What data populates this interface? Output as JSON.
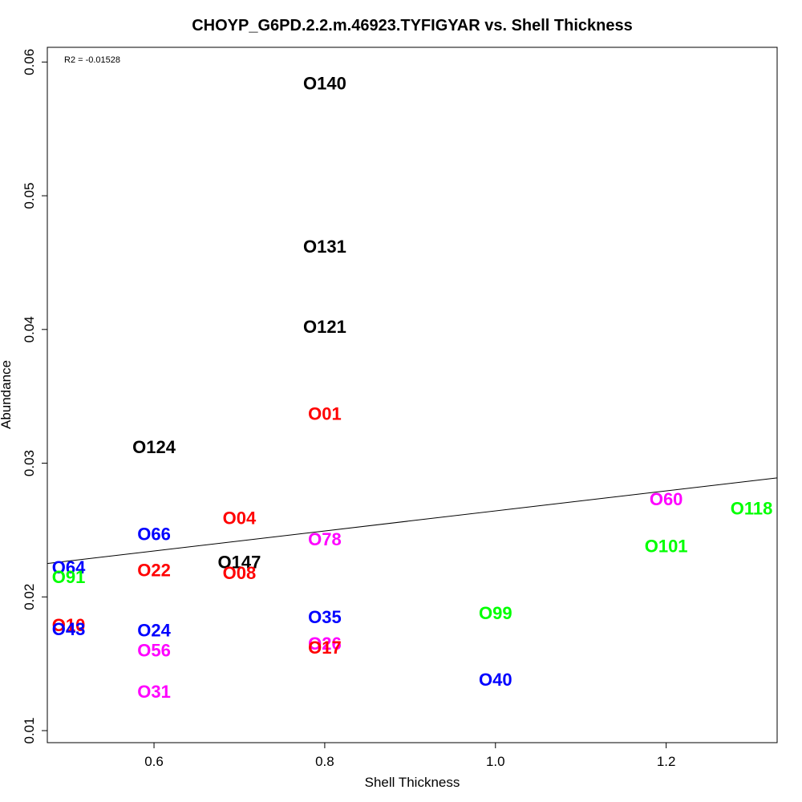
{
  "chart_data": {
    "type": "scatter",
    "title": "CHOYP_G6PD.2.2.m.46923.TYFIGYAR vs. Shell Thickness",
    "xlabel": "Shell Thickness",
    "ylabel": "Abundance",
    "annotation": "R2 = -0.01528",
    "xlim": [
      0.475,
      1.33
    ],
    "ylim": [
      0.0091,
      0.0611
    ],
    "x_ticks": [
      0.6,
      0.8,
      1.0,
      1.2
    ],
    "x_tick_labels": [
      "0.6",
      "0.8",
      "1.0",
      "1.2"
    ],
    "y_ticks": [
      0.01,
      0.02,
      0.03,
      0.04,
      0.05,
      0.06
    ],
    "y_tick_labels": [
      "0.01",
      "0.02",
      "0.03",
      "0.04",
      "0.05",
      "0.06"
    ],
    "grid": false,
    "colors": {
      "black": "#000000",
      "red": "#ff0000",
      "blue": "#0000ff",
      "magenta": "#ff00ff",
      "green": "#00ff00"
    },
    "regression_line": {
      "x": [
        0.475,
        1.33
      ],
      "y": [
        0.0225,
        0.0289
      ]
    },
    "points": [
      {
        "label": "O140",
        "x": 0.8,
        "y": 0.0584,
        "color": "#000000"
      },
      {
        "label": "O131",
        "x": 0.8,
        "y": 0.0462,
        "color": "#000000"
      },
      {
        "label": "O121",
        "x": 0.8,
        "y": 0.0402,
        "color": "#000000"
      },
      {
        "label": "O01",
        "x": 0.8,
        "y": 0.0337,
        "color": "#ff0000"
      },
      {
        "label": "O124",
        "x": 0.6,
        "y": 0.0312,
        "color": "#000000"
      },
      {
        "label": "O60",
        "x": 1.2,
        "y": 0.0273,
        "color": "#ff00ff"
      },
      {
        "label": "O118",
        "x": 1.3,
        "y": 0.0266,
        "color": "#00ff00"
      },
      {
        "label": "O04",
        "x": 0.7,
        "y": 0.0259,
        "color": "#ff0000"
      },
      {
        "label": "O66",
        "x": 0.6,
        "y": 0.0247,
        "color": "#0000ff"
      },
      {
        "label": "O78",
        "x": 0.8,
        "y": 0.0243,
        "color": "#ff00ff"
      },
      {
        "label": "O101",
        "x": 1.2,
        "y": 0.0238,
        "color": "#00ff00"
      },
      {
        "label": "O147",
        "x": 0.7,
        "y": 0.0226,
        "color": "#000000"
      },
      {
        "label": "O64",
        "x": 0.5,
        "y": 0.0222,
        "color": "#0000ff"
      },
      {
        "label": "O22",
        "x": 0.6,
        "y": 0.022,
        "color": "#ff0000"
      },
      {
        "label": "O08",
        "x": 0.7,
        "y": 0.0218,
        "color": "#ff0000"
      },
      {
        "label": "O91",
        "x": 0.5,
        "y": 0.0215,
        "color": "#00ff00"
      },
      {
        "label": "O99",
        "x": 1.0,
        "y": 0.0188,
        "color": "#00ff00"
      },
      {
        "label": "O35",
        "x": 0.8,
        "y": 0.0185,
        "color": "#0000ff"
      },
      {
        "label": "O10",
        "x": 0.5,
        "y": 0.0179,
        "color": "#ff0000"
      },
      {
        "label": "O43",
        "x": 0.5,
        "y": 0.0176,
        "color": "#0000ff"
      },
      {
        "label": "O24",
        "x": 0.6,
        "y": 0.0175,
        "color": "#0000ff"
      },
      {
        "label": "O26",
        "x": 0.8,
        "y": 0.0165,
        "color": "#ff00ff"
      },
      {
        "label": "O17",
        "x": 0.8,
        "y": 0.0162,
        "color": "#ff0000"
      },
      {
        "label": "O56",
        "x": 0.6,
        "y": 0.016,
        "color": "#ff00ff"
      },
      {
        "label": "O40",
        "x": 1.0,
        "y": 0.0138,
        "color": "#0000ff"
      },
      {
        "label": "O31",
        "x": 0.6,
        "y": 0.0129,
        "color": "#ff00ff"
      }
    ]
  }
}
